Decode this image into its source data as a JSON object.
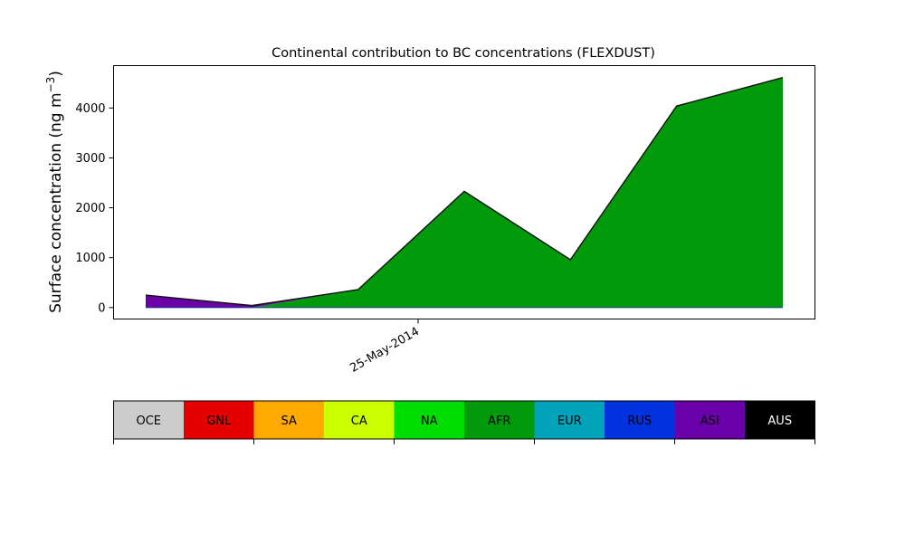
{
  "chart_data": [
    {
      "type": "area",
      "stacked": true,
      "title": "Continental contribution to BC concentrations (FLEXDUST)",
      "ylabel": "Surface concentration (ng m",
      "ylabel_sup": "−3",
      "ylabel_close": ")",
      "x_tick_labels": [
        "25-May-2014"
      ],
      "ylim": [
        -230,
        4850
      ],
      "y_ticks": [
        0,
        1000,
        2000,
        3000,
        4000
      ],
      "grid": false,
      "points_count_note": "",
      "series": [
        {
          "key": "AFR",
          "color": "#009a0a",
          "values": [
            0,
            0,
            360,
            2330,
            960,
            4040,
            4610
          ]
        },
        {
          "key": "ASI",
          "color": "#6a00a8",
          "values": [
            250,
            40,
            0,
            0,
            0,
            0,
            0
          ]
        }
      ]
    },
    {
      "type": "legend-colorbar",
      "entries": [
        {
          "label": "OCE",
          "color": "#cccccc",
          "text_color": "#000000"
        },
        {
          "label": "GNL",
          "color": "#e50000",
          "text_color": "#000000"
        },
        {
          "label": "SA",
          "color": "#ffaa00",
          "text_color": "#000000"
        },
        {
          "label": "CA",
          "color": "#ccff00",
          "text_color": "#000000"
        },
        {
          "label": "NA",
          "color": "#00dd00",
          "text_color": "#000000"
        },
        {
          "label": "AFR",
          "color": "#009a0a",
          "text_color": "#000000"
        },
        {
          "label": "EUR",
          "color": "#00a3b8",
          "text_color": "#000000"
        },
        {
          "label": "RUS",
          "color": "#0033dd",
          "text_color": "#000000"
        },
        {
          "label": "ASI",
          "color": "#6a00a8",
          "text_color": "#000000"
        },
        {
          "label": "AUS",
          "color": "#000000",
          "text_color": "#ffffff"
        }
      ]
    }
  ]
}
